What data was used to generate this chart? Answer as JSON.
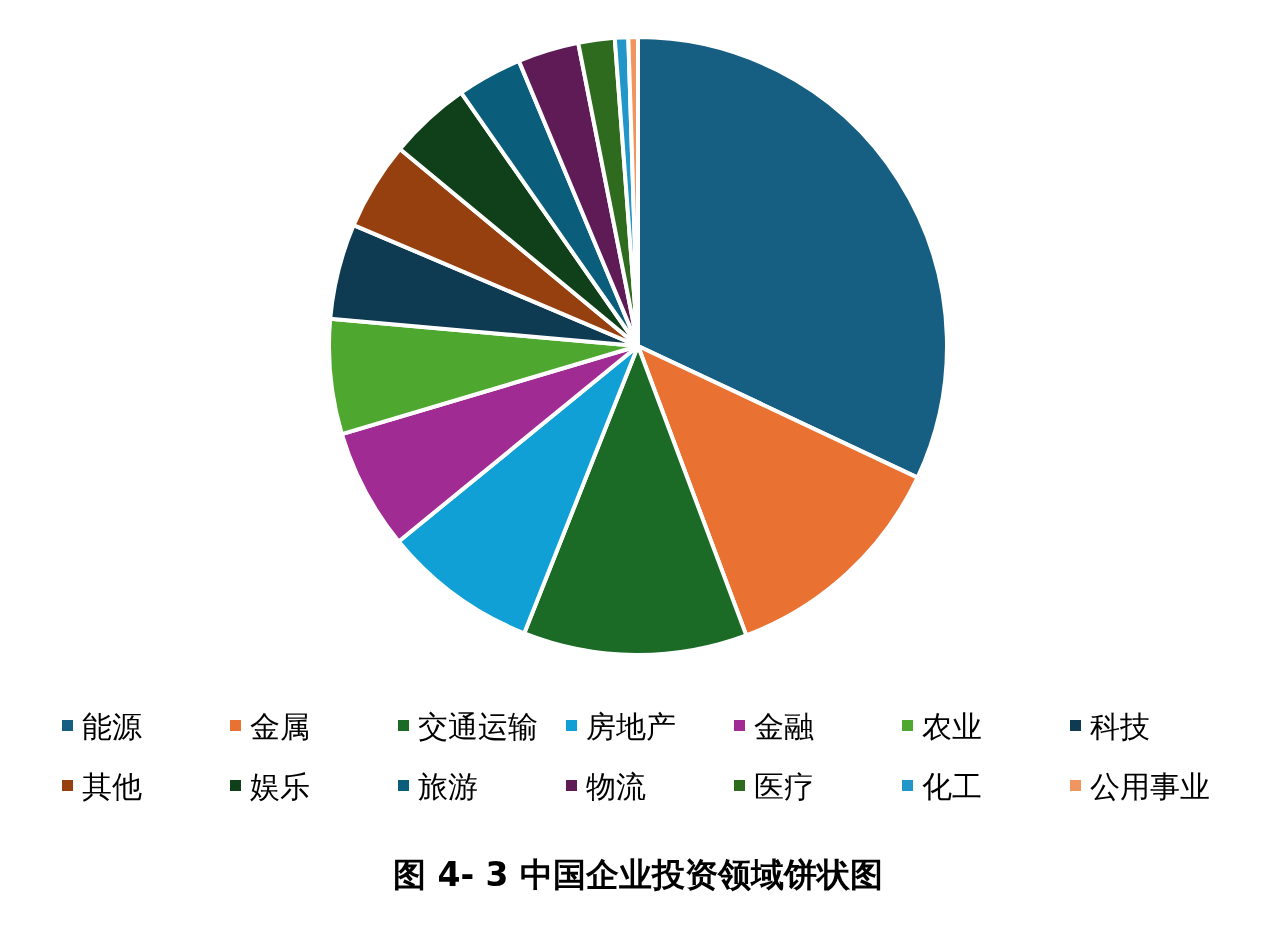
{
  "chart_data": {
    "type": "pie",
    "title": "图 4- 3  中国企业投资领域饼状图",
    "categories": [
      "能源",
      "金属",
      "交通运输",
      "房地产",
      "金融",
      "农业",
      "科技",
      "其他",
      "娱乐",
      "旅游",
      "物流",
      "医疗",
      "化工",
      "公用事业"
    ],
    "values": [
      32.0,
      12.3,
      11.7,
      8.1,
      6.3,
      6.0,
      5.0,
      4.6,
      4.3,
      3.4,
      3.2,
      1.9,
      0.7,
      0.5
    ],
    "colors": [
      "#175f82",
      "#e97132",
      "#1b6b26",
      "#10a0d6",
      "#a02b93",
      "#4ea72e",
      "#0e3a52",
      "#97400f",
      "#10401a",
      "#0b5d7c",
      "#5f1b56",
      "#2e6b1e",
      "#2295c9",
      "#f0955f"
    ],
    "legend": "bottom"
  }
}
